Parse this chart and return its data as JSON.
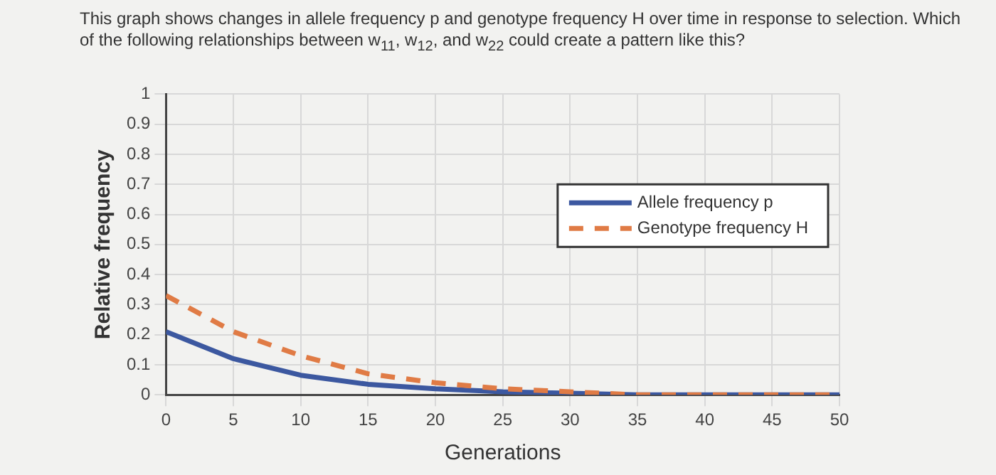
{
  "chart_data": {
    "type": "line",
    "title": "This graph shows changes in allele frequency p and genotype frequency H over time in response to selection. Which of the following relationships between w$_{11}$, w$_{12}$, and w$_{22}$ could create a pattern like this?",
    "xlabel": "Generations",
    "ylabel": "Relative frequency",
    "x": [
      0,
      5,
      10,
      15,
      20,
      25,
      30,
      35,
      40,
      45,
      50
    ],
    "series": [
      {
        "name": "Allele frequency p",
        "color": "#3c58a0",
        "line_style": "solid",
        "values": [
          0.21,
          0.12,
          0.065,
          0.035,
          0.02,
          0.01,
          0.005,
          0,
          0,
          0,
          0
        ]
      },
      {
        "name": "Genotype frequency H",
        "color": "#e07b45",
        "line_style": "dashed",
        "values": [
          0.33,
          0.21,
          0.13,
          0.07,
          0.04,
          0.02,
          0.01,
          0,
          0,
          0,
          0
        ]
      }
    ],
    "xlim": [
      0,
      50
    ],
    "xticks": [
      0,
      5,
      10,
      15,
      20,
      25,
      30,
      35,
      40,
      45,
      50
    ],
    "ylim": [
      0,
      1
    ],
    "yticks": [
      0,
      0.1,
      0.2,
      0.3,
      0.4,
      0.5,
      0.6,
      0.7,
      0.8,
      0.9,
      1
    ],
    "grid": true,
    "legend": "right",
    "marker": "none"
  }
}
